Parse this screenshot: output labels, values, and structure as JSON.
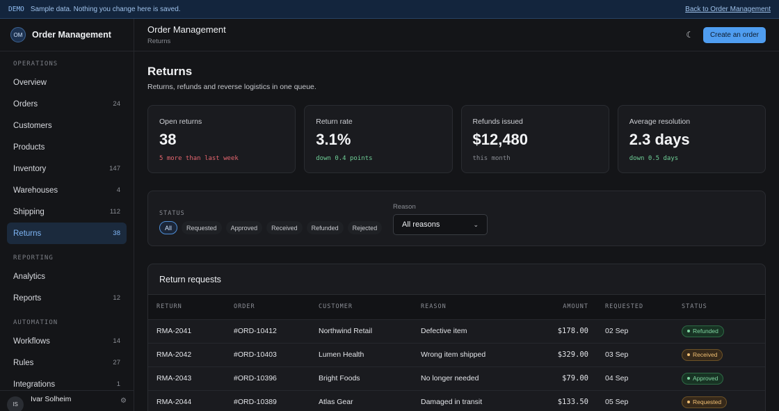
{
  "banner": {
    "tag": "DEMO",
    "message": "Sample data. Nothing you change here is saved.",
    "back_link": "Back to Order Management"
  },
  "sidebar": {
    "logo": "OM",
    "brand": "Order Management",
    "sections": [
      {
        "title": "OPERATIONS",
        "items": [
          {
            "label": "Overview",
            "count": ""
          },
          {
            "label": "Orders",
            "count": "24"
          },
          {
            "label": "Customers",
            "count": ""
          },
          {
            "label": "Products",
            "count": ""
          },
          {
            "label": "Inventory",
            "count": "147"
          },
          {
            "label": "Warehouses",
            "count": "4"
          },
          {
            "label": "Shipping",
            "count": "112"
          },
          {
            "label": "Returns",
            "count": "38",
            "active": true
          }
        ]
      },
      {
        "title": "REPORTING",
        "items": [
          {
            "label": "Analytics",
            "count": ""
          },
          {
            "label": "Reports",
            "count": "12"
          }
        ]
      },
      {
        "title": "AUTOMATION",
        "items": [
          {
            "label": "Workflows",
            "count": "14"
          },
          {
            "label": "Rules",
            "count": "27"
          },
          {
            "label": "Integrations",
            "count": "1"
          }
        ]
      }
    ],
    "user": {
      "initials": "IS",
      "name": "Ivar Solheim",
      "icon": "settings-icon"
    }
  },
  "topbar": {
    "title": "Order Management",
    "breadcrumb": "Returns",
    "theme_icon": "moon-icon",
    "primary_button": "Create an order"
  },
  "page": {
    "title": "Returns",
    "subtitle": "Returns, refunds and reverse logistics in one queue."
  },
  "stats": [
    {
      "label": "Open returns",
      "value": "38",
      "note": "5 more than last week",
      "note_color": "#e5666f"
    },
    {
      "label": "Return rate",
      "value": "3.1%",
      "note": "down 0.4 points",
      "note_color": "#6fcf97"
    },
    {
      "label": "Refunds issued",
      "value": "$12,480",
      "note": "this month",
      "note_color": "#8b8e95"
    },
    {
      "label": "Average resolution",
      "value": "2.3 days",
      "note": "down 0.5 days",
      "note_color": "#6fcf97"
    }
  ],
  "filters": {
    "status_label": "STATUS",
    "statuses": [
      "All",
      "Requested",
      "Approved",
      "Received",
      "Refunded",
      "Rejected"
    ],
    "active_status": "All",
    "reason_label": "Reason",
    "reason_value": "All reasons"
  },
  "table": {
    "title": "Return requests",
    "columns": [
      "RETURN",
      "ORDER",
      "CUSTOMER",
      "REASON",
      "AMOUNT",
      "REQUESTED",
      "STATUS"
    ],
    "rows": [
      {
        "return": "RMA-2041",
        "order": "#ORD-10412",
        "customer": "Northwind Retail",
        "reason": "Defective item",
        "amount": "$178.00",
        "requested": "02 Sep",
        "status": "Refunded",
        "tone": "green"
      },
      {
        "return": "RMA-2042",
        "order": "#ORD-10403",
        "customer": "Lumen Health",
        "reason": "Wrong item shipped",
        "amount": "$329.00",
        "requested": "03 Sep",
        "status": "Received",
        "tone": "amber"
      },
      {
        "return": "RMA-2043",
        "order": "#ORD-10396",
        "customer": "Bright Foods",
        "reason": "No longer needed",
        "amount": "$79.00",
        "requested": "04 Sep",
        "status": "Approved",
        "tone": "green"
      },
      {
        "return": "RMA-2044",
        "order": "#ORD-10389",
        "customer": "Atlas Gear",
        "reason": "Damaged in transit",
        "amount": "$133.50",
        "requested": "05 Sep",
        "status": "Requested",
        "tone": "amber"
      }
    ]
  }
}
